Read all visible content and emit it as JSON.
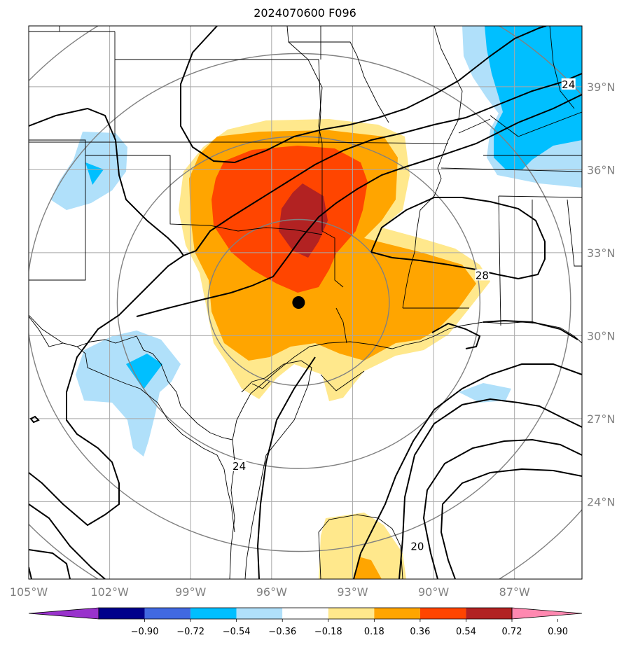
{
  "title": "2024070600 F096",
  "map": {
    "lon_range": [
      -105,
      -84.5
    ],
    "lat_range": [
      21.2,
      41.2
    ],
    "lon_ticks": [
      {
        "value": -105,
        "label": "105°W"
      },
      {
        "value": -102,
        "label": "102°W"
      },
      {
        "value": -99,
        "label": "99°W"
      },
      {
        "value": -96,
        "label": "96°W"
      },
      {
        "value": -93,
        "label": "93°W"
      },
      {
        "value": -90,
        "label": "90°W"
      },
      {
        "value": -87,
        "label": "87°W"
      }
    ],
    "lat_ticks": [
      {
        "value": 39,
        "label": "39°N"
      },
      {
        "value": 36,
        "label": "36°N"
      },
      {
        "value": 33,
        "label": "33°N"
      },
      {
        "value": 30,
        "label": "30°N"
      },
      {
        "value": 27,
        "label": "27°N"
      },
      {
        "value": 24,
        "label": "24°N"
      }
    ],
    "gridlines": true,
    "center_marker": {
      "lon": -95.0,
      "lat": 31.2
    },
    "range_rings_deg": [
      3,
      6,
      9,
      12
    ]
  },
  "contours": {
    "labels": [
      {
        "text": "24",
        "lon": -85.0,
        "lat": 39.0
      },
      {
        "text": "28",
        "lon": -88.2,
        "lat": 32.1
      },
      {
        "text": "24",
        "lon": -97.2,
        "lat": 25.2
      },
      {
        "text": "20",
        "lon": -90.6,
        "lat": 22.3
      }
    ]
  },
  "colorbar": {
    "colors": [
      "#9932cc",
      "#00008b",
      "#4169e1",
      "#00bfff",
      "#b0e0fa",
      "#ffffff",
      "#ffe88c",
      "#ffa500",
      "#ff4500",
      "#b22222",
      "#ff88b0"
    ],
    "tick_labels": [
      "−0.90",
      "−0.72",
      "−0.54",
      "−0.36",
      "−0.18",
      "0.18",
      "0.36",
      "0.54",
      "0.72",
      "0.90"
    ]
  },
  "colors": {
    "light_blue": "#b0e0fa",
    "blue": "#00bfff",
    "yellow": "#ffe88c",
    "orange": "#ffa500",
    "red_orange": "#ff4500",
    "dark_red": "#b22222"
  }
}
